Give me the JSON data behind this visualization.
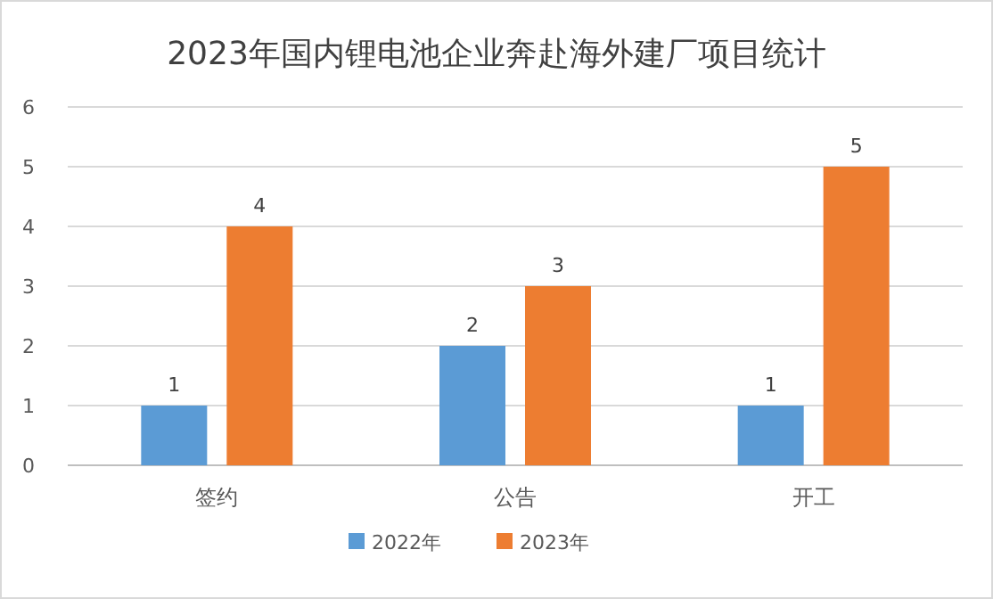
{
  "chart_data": {
    "type": "bar",
    "title": "2023年国内锂电池企业奔赴海外建厂项目统计",
    "categories": [
      "签约",
      "公告",
      "开工"
    ],
    "series": [
      {
        "name": "2022年",
        "color": "#5b9bd5",
        "values": [
          1,
          2,
          1
        ]
      },
      {
        "name": "2023年",
        "color": "#ed7d31",
        "values": [
          4,
          3,
          5
        ]
      }
    ],
    "ylim": [
      0,
      6
    ],
    "yticks": [
      0,
      1,
      2,
      3,
      4,
      5,
      6
    ],
    "grid": "y",
    "legend": "bottom",
    "data_labels": true
  }
}
